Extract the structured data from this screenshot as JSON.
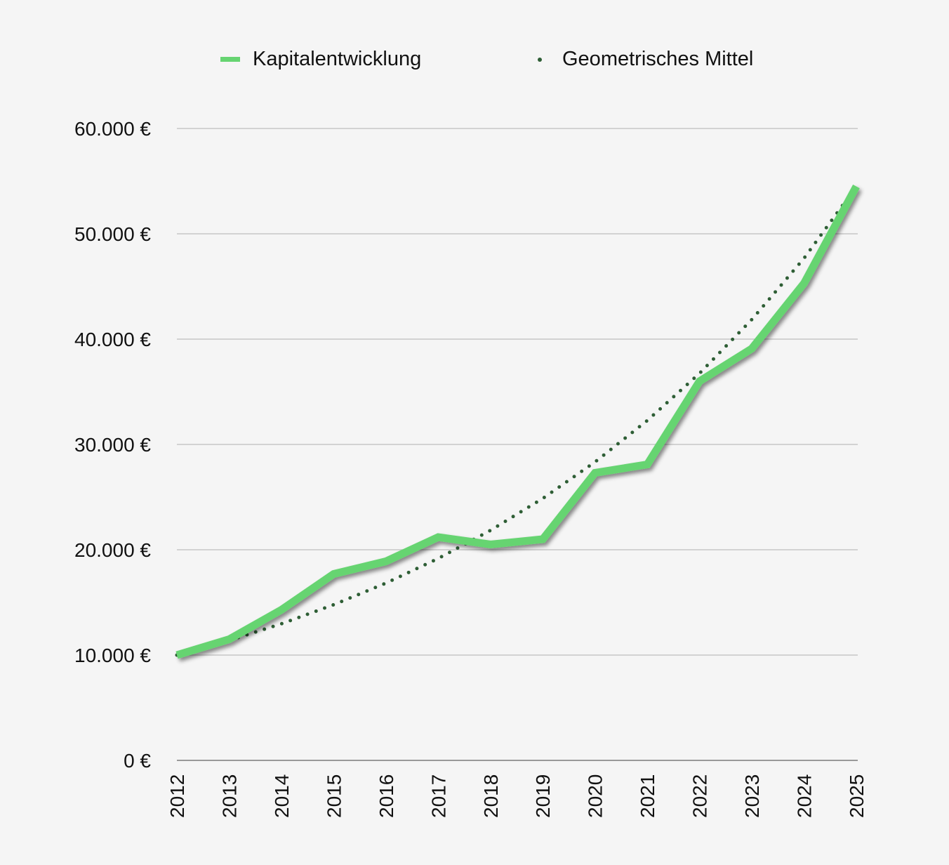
{
  "chart_data": {
    "type": "line",
    "title": "",
    "xlabel": "",
    "ylabel": "",
    "categories": [
      "2012",
      "2013",
      "2014",
      "2015",
      "2016",
      "2017",
      "2018",
      "2019",
      "2020",
      "2021",
      "2022",
      "2023",
      "2024",
      "2025"
    ],
    "series": [
      {
        "name": "Kapitalentwicklung",
        "style": "solid",
        "color": "#66d471",
        "values": [
          10000,
          11500,
          14300,
          17700,
          18900,
          21200,
          20500,
          21000,
          27300,
          28100,
          36000,
          39100,
          45300,
          54500
        ]
      },
      {
        "name": "Geometrisches Mittel",
        "style": "dotted",
        "color": "#2e5e35",
        "values": [
          10000,
          11390,
          12970,
          14780,
          16830,
          19170,
          21840,
          24870,
          28330,
          32270,
          36750,
          41860,
          47680,
          54500
        ]
      }
    ],
    "ylim": [
      0,
      60000
    ],
    "yticks": [
      "0 €",
      "10.000 €",
      "20.000 €",
      "30.000 €",
      "40.000 €",
      "50.000 €",
      "60.000 €"
    ],
    "ytick_values": [
      0,
      10000,
      20000,
      30000,
      40000,
      50000,
      60000
    ],
    "grid": true,
    "legend": "top"
  }
}
